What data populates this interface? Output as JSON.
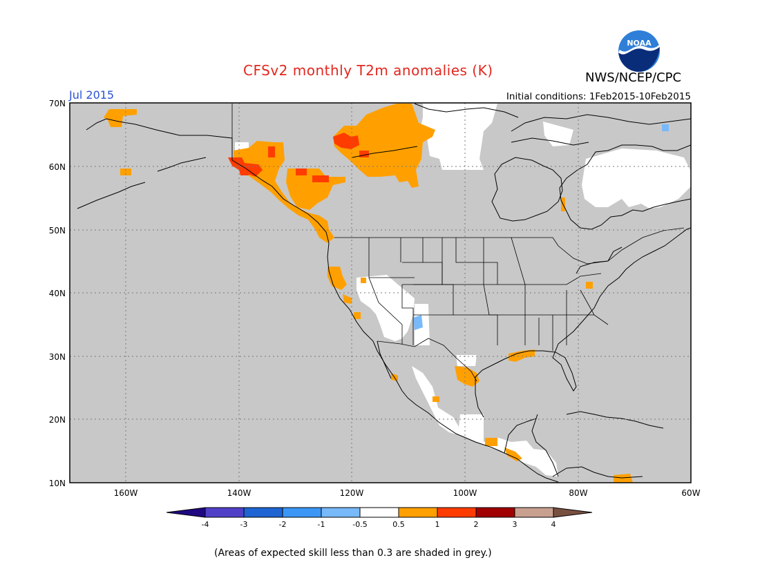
{
  "title": "CFSv2 monthly T2m anomalies (K)",
  "agency": "NWS/NCEP/CPC",
  "month_label": "Jul 2015",
  "initial_conditions": "Initial conditions:  1Feb2015-10Feb2015",
  "logo_text": "NOAA",
  "footnote": "(Areas of expected skill less than 0.3 are shaded in grey.)",
  "colors": {
    "grey_low_skill": "#c8c8c8",
    "title": "#e3261e",
    "month": "#2b52d6"
  },
  "map": {
    "lon_range": [
      -170,
      -60
    ],
    "lat_range": [
      10,
      70
    ],
    "lat_labels": [
      "70N",
      "60N",
      "50N",
      "40N",
      "30N",
      "20N",
      "10N"
    ],
    "lon_labels": [
      "160W",
      "140W",
      "120W",
      "100W",
      "80W",
      "60W"
    ],
    "gridlines": "dotted"
  },
  "legend": {
    "tick_labels": [
      "-4",
      "-3",
      "-2",
      "-1",
      "-0.5",
      "0.5",
      "1",
      "2",
      "3",
      "4"
    ],
    "colors": [
      "#200882",
      "#5040c8",
      "#1e64d2",
      "#3c96f5",
      "#78b9fa",
      "#ffffff",
      "#ffa000",
      "#ff3c00",
      "#a00000",
      "#c8a090",
      "#785040"
    ]
  }
}
